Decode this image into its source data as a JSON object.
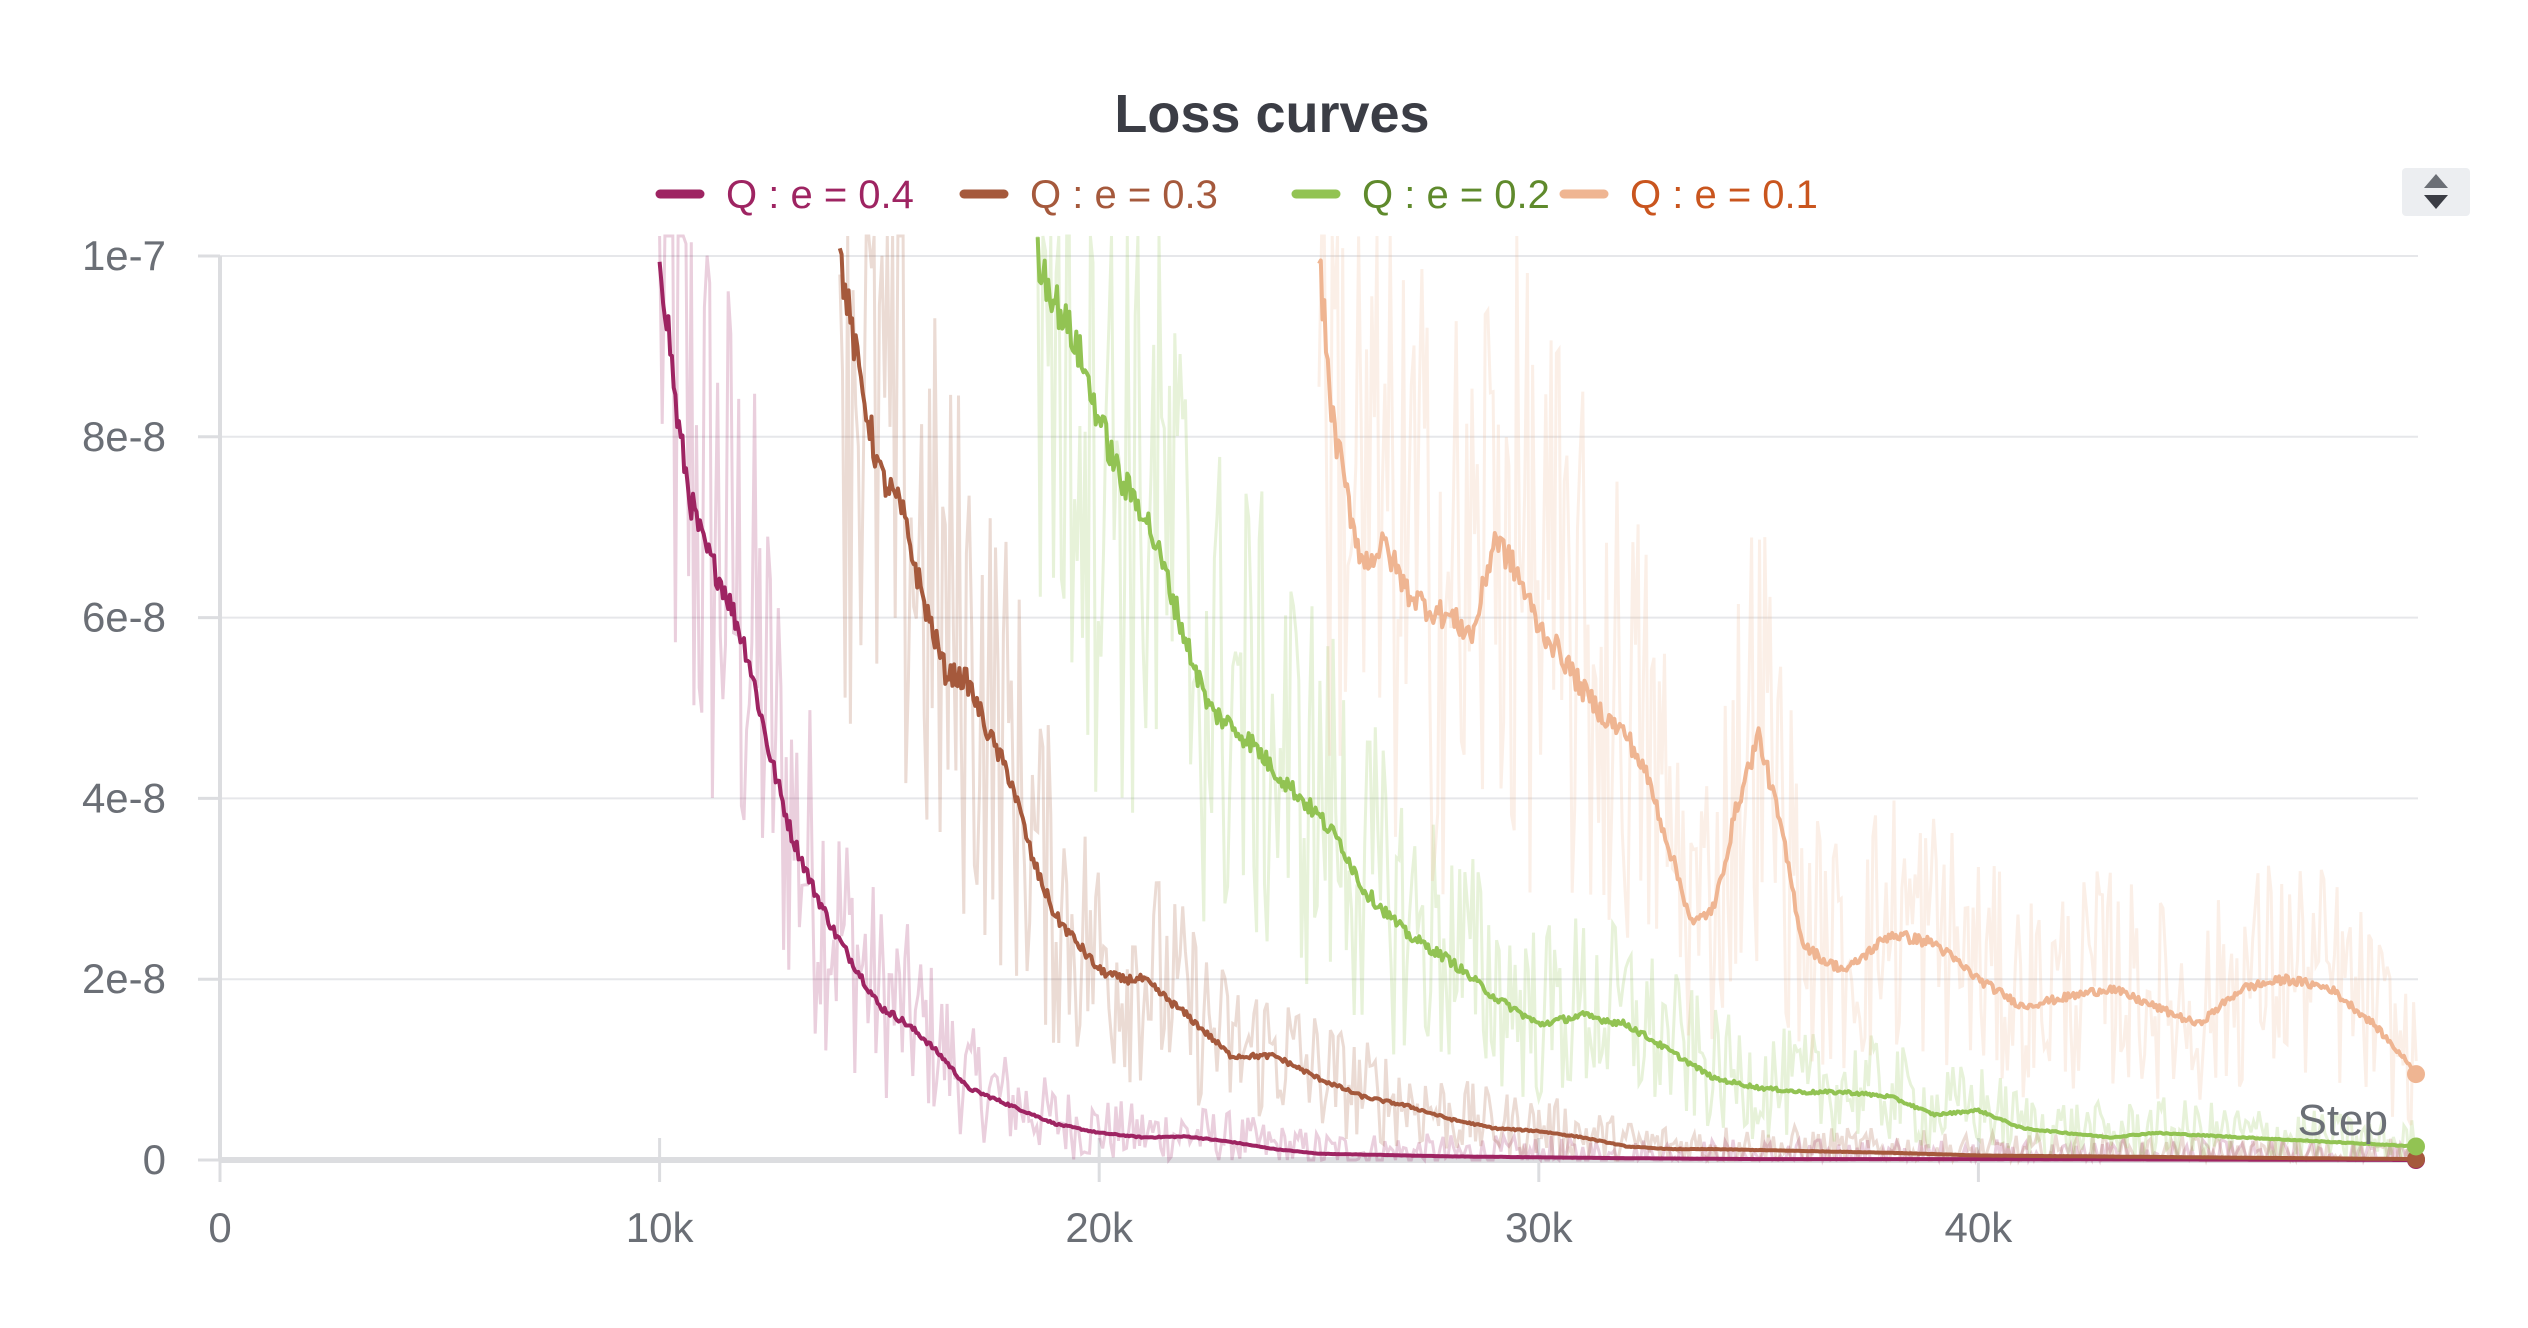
{
  "chart_data": {
    "type": "line",
    "title": "Loss curves",
    "xlabel": "Step",
    "ylabel": "",
    "xlim": [
      0,
      50000
    ],
    "ylim": [
      0,
      1e-07
    ],
    "x_ticks": [
      0,
      10000,
      20000,
      30000,
      40000
    ],
    "x_tick_labels": [
      "0",
      "10k",
      "20k",
      "30k",
      "40k"
    ],
    "y_ticks": [
      0,
      2e-08,
      4e-08,
      6e-08,
      8e-08,
      1e-07
    ],
    "y_tick_labels": [
      "0",
      "2e-8",
      "4e-8",
      "6e-8",
      "8e-8",
      "1e-7"
    ],
    "grid": true,
    "legend_position": "top-center",
    "series": [
      {
        "name": "Q : e = 0.4",
        "color": "#9e2462",
        "label_color": "#9e2462",
        "x": [
          10000,
          10200,
          10400,
          10700,
          11000,
          11500,
          12000,
          12500,
          13000,
          13500,
          14000,
          14500,
          15000,
          15500,
          16000,
          16500,
          17000,
          18000,
          19000,
          20000,
          21000,
          22000,
          23000,
          24000,
          25000,
          26000,
          28000,
          30000,
          32000,
          35000,
          40000,
          45000,
          50000
        ],
        "y": [
          1e-07,
          9.2e-08,
          8.2e-08,
          7.3e-08,
          6.8e-08,
          6.3e-08,
          5.6e-08,
          4.5e-08,
          3.6e-08,
          3e-08,
          2.5e-08,
          2.1e-08,
          1.7e-08,
          1.55e-08,
          1.35e-08,
          1.1e-08,
          8e-09,
          6e-09,
          4e-09,
          3e-09,
          2.5e-09,
          2.6e-09,
          2e-09,
          1.2e-09,
          7e-10,
          6e-10,
          4e-10,
          3e-10,
          2e-10,
          1e-10,
          1e-10,
          5e-11,
          0
        ]
      },
      {
        "name": "Q : e = 0.3",
        "color": "#a5593c",
        "label_color": "#a5593c",
        "x": [
          14100,
          14500,
          15000,
          15500,
          16000,
          16500,
          17000,
          17500,
          18000,
          18500,
          19000,
          19500,
          20000,
          20500,
          21000,
          22000,
          23000,
          24000,
          25000,
          26000,
          27000,
          28000,
          29000,
          30000,
          31000,
          32000,
          33000,
          34000,
          36000,
          38000,
          40000,
          45000,
          50000
        ],
        "y": [
          1e-07,
          8.8e-08,
          7.6e-08,
          7.2e-08,
          6.2e-08,
          5.4e-08,
          5.3e-08,
          4.7e-08,
          4.2e-08,
          3.3e-08,
          2.7e-08,
          2.4e-08,
          2.1e-08,
          2e-08,
          2e-08,
          1.6e-08,
          1.15e-08,
          1.15e-08,
          9e-09,
          7e-09,
          6e-09,
          4.5e-09,
          3.5e-09,
          3.2e-09,
          2.5e-09,
          1.5e-09,
          1.2e-09,
          1.2e-09,
          1e-09,
          8e-10,
          5e-10,
          3e-10,
          1e-10
        ]
      },
      {
        "name": "Q : e = 0.2",
        "color": "#92c353",
        "label_color": "#5f8a2c",
        "x": [
          18600,
          19000,
          19500,
          20000,
          20500,
          21000,
          21500,
          22000,
          22500,
          23000,
          23500,
          24000,
          25000,
          25500,
          26000,
          27000,
          28000,
          29000,
          30000,
          31000,
          32000,
          33000,
          34000,
          35000,
          36000,
          37000,
          38000,
          39000,
          40000,
          41000,
          42000,
          43000,
          44000,
          46000,
          48000,
          50000
        ],
        "y": [
          1e-07,
          9.5e-08,
          9e-08,
          8.2e-08,
          7.5e-08,
          7.2e-08,
          6.5e-08,
          5.7e-08,
          5e-08,
          4.8e-08,
          4.6e-08,
          4.3e-08,
          3.8e-08,
          3.5e-08,
          3e-08,
          2.5e-08,
          2.2e-08,
          1.8e-08,
          1.5e-08,
          1.6e-08,
          1.5e-08,
          1.2e-08,
          9e-09,
          8e-09,
          7.5e-09,
          7.5e-09,
          7e-09,
          5e-09,
          5.5e-09,
          3.5e-09,
          3e-09,
          2.5e-09,
          3e-09,
          2.5e-09,
          2e-09,
          1.5e-09
        ]
      },
      {
        "name": "Q : e = 0.1",
        "color": "#efb592",
        "label_color": "#c9551e",
        "x": [
          25000,
          25300,
          25700,
          26000,
          26500,
          27000,
          27500,
          28000,
          28500,
          29000,
          29500,
          30000,
          30500,
          31000,
          31500,
          32000,
          32500,
          33000,
          33500,
          34000,
          34500,
          35000,
          35500,
          36000,
          36500,
          37000,
          38000,
          39000,
          40000,
          41000,
          42000,
          43000,
          44000,
          45000,
          46000,
          47000,
          48000,
          49000,
          50000
        ],
        "y": [
          1e-07,
          8.2e-08,
          7.2e-08,
          6.6e-08,
          6.8e-08,
          6.3e-08,
          6.1e-08,
          6e-08,
          5.8e-08,
          6.9e-08,
          6.5e-08,
          5.9e-08,
          5.6e-08,
          5.2e-08,
          4.9e-08,
          4.7e-08,
          4.2e-08,
          3.4e-08,
          2.6e-08,
          2.8e-08,
          3.9e-08,
          4.7e-08,
          3.7e-08,
          2.4e-08,
          2.2e-08,
          2.1e-08,
          2.5e-08,
          2.4e-08,
          2e-08,
          1.7e-08,
          1.8e-08,
          1.9e-08,
          1.7e-08,
          1.5e-08,
          1.9e-08,
          2e-08,
          1.9e-08,
          1.5e-08,
          9.5e-09
        ]
      }
    ]
  }
}
